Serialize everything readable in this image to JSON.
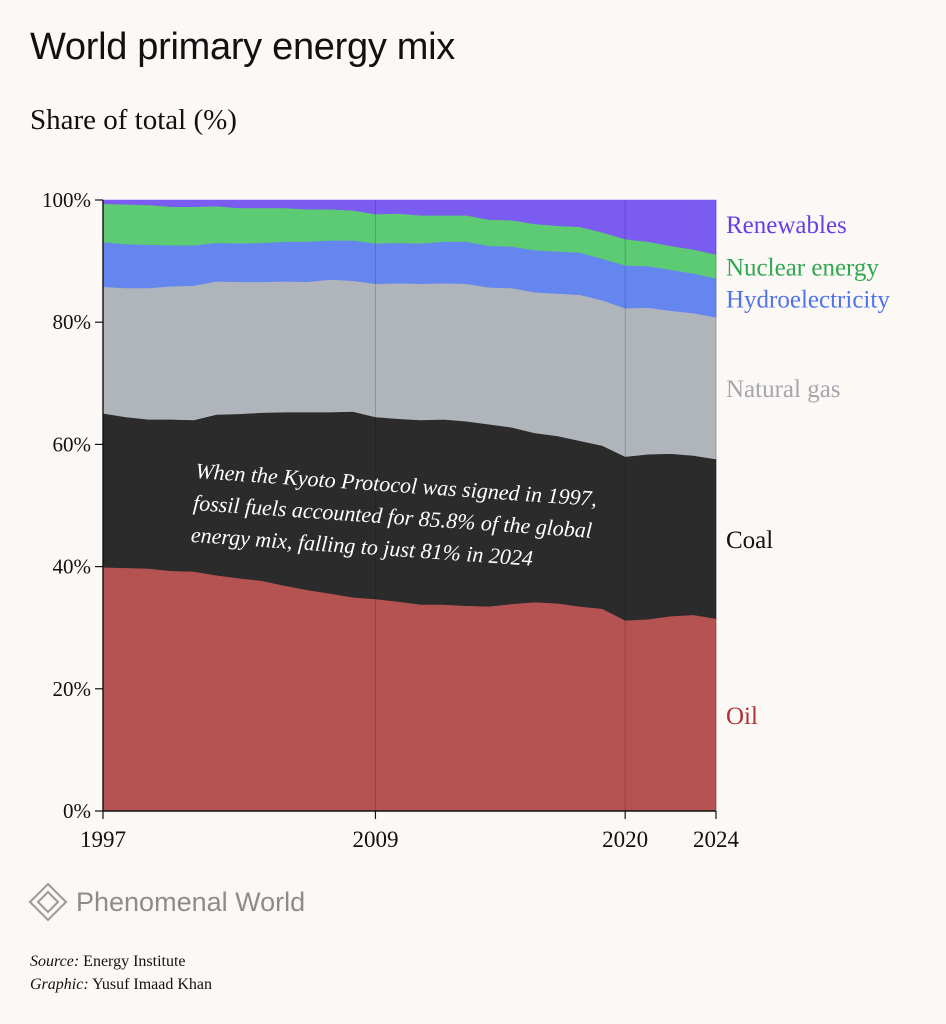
{
  "header": {
    "title": "World primary energy mix",
    "subtitle": "Share of total (%)"
  },
  "chart_data": {
    "type": "area",
    "stacked": true,
    "title": "World primary energy mix",
    "subtitle": "Share of total (%)",
    "xlabel": "",
    "ylabel": "",
    "xlim": [
      1997,
      2024
    ],
    "ylim": [
      0,
      100
    ],
    "x_ticks": [
      "1997",
      "2009",
      "2020",
      "2024"
    ],
    "y_ticks": [
      "0%",
      "20%",
      "40%",
      "60%",
      "80%",
      "100%"
    ],
    "grid": "vertical lines at labelled years",
    "legend": "direct labels at right",
    "x": [
      1997,
      1998,
      1999,
      2000,
      2001,
      2002,
      2003,
      2004,
      2005,
      2006,
      2007,
      2008,
      2009,
      2010,
      2011,
      2012,
      2013,
      2014,
      2015,
      2016,
      2017,
      2018,
      2019,
      2020,
      2021,
      2022,
      2023,
      2024
    ],
    "series": [
      {
        "name": "Oil",
        "color": "#b55353",
        "label_color": "#b03434",
        "values": [
          39.9,
          39.8,
          39.7,
          39.3,
          39.2,
          38.6,
          38.1,
          37.7,
          36.9,
          36.2,
          35.6,
          35.0,
          34.7,
          34.3,
          33.8,
          33.8,
          33.6,
          33.5,
          33.9,
          34.2,
          34.0,
          33.5,
          33.1,
          31.2,
          31.4,
          31.9,
          32.1,
          31.5
        ]
      },
      {
        "name": "Coal",
        "color": "#2b2b2b",
        "label_color": "#111111",
        "values": [
          25.2,
          24.7,
          24.4,
          24.8,
          24.8,
          26.3,
          26.9,
          27.5,
          28.4,
          29.1,
          29.7,
          30.4,
          29.8,
          29.9,
          30.2,
          30.3,
          30.2,
          29.8,
          28.9,
          27.7,
          27.4,
          27.1,
          26.7,
          26.8,
          27.0,
          26.6,
          26.1,
          26.1
        ]
      },
      {
        "name": "Natural gas",
        "color": "#b0b4bb",
        "label_color": "#a4a6ac",
        "values": [
          20.7,
          21.1,
          21.5,
          21.8,
          22.0,
          21.8,
          21.6,
          21.4,
          21.4,
          21.3,
          21.7,
          21.4,
          21.8,
          22.2,
          22.3,
          22.3,
          22.5,
          22.4,
          22.8,
          23.0,
          23.3,
          23.9,
          23.8,
          24.3,
          24.0,
          23.4,
          23.3,
          23.2
        ]
      },
      {
        "name": "Hydroelectricity",
        "color": "#6586ee",
        "label_color": "#4f73ea",
        "values": [
          7.3,
          7.2,
          7.1,
          6.7,
          6.6,
          6.3,
          6.3,
          6.4,
          6.5,
          6.6,
          6.4,
          6.6,
          6.6,
          6.6,
          6.6,
          6.8,
          6.9,
          6.8,
          6.8,
          6.9,
          6.9,
          6.9,
          6.8,
          7.0,
          6.8,
          6.7,
          6.5,
          6.4
        ]
      },
      {
        "name": "Nuclear energy",
        "color": "#5ccb73",
        "label_color": "#2ea84e",
        "values": [
          6.3,
          6.5,
          6.5,
          6.3,
          6.3,
          6.0,
          5.8,
          5.7,
          5.5,
          5.3,
          5.1,
          4.9,
          4.8,
          4.8,
          4.6,
          4.3,
          4.3,
          4.3,
          4.3,
          4.3,
          4.2,
          4.2,
          4.3,
          4.3,
          4.0,
          3.9,
          3.9,
          3.9
        ]
      },
      {
        "name": "Renewables",
        "color": "#7b5cf0",
        "label_color": "#6540ea",
        "values": [
          0.6,
          0.7,
          0.8,
          1.1,
          1.1,
          1.0,
          1.3,
          1.3,
          1.3,
          1.5,
          1.5,
          1.7,
          2.3,
          2.2,
          2.5,
          2.5,
          2.5,
          3.2,
          3.3,
          3.9,
          4.2,
          4.4,
          5.3,
          6.4,
          6.8,
          7.5,
          8.1,
          8.9
        ]
      }
    ],
    "annotation": [
      "When the Kyoto Protocol was signed in 1997,",
      "fossil fuels accounted for 85.8% of the global",
      "energy mix, falling to just 81% in 2024"
    ]
  },
  "brand": {
    "name": "Phenomenal World",
    "logo_icon": "diamond-logo-icon"
  },
  "credits": {
    "source_label": "Source:",
    "source": "Energy Institute",
    "graphic_label": "Graphic:",
    "graphic": "Yusuf Imaad Khan"
  }
}
